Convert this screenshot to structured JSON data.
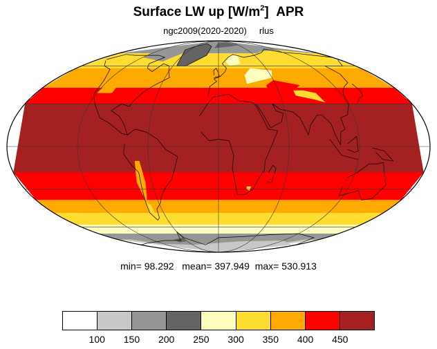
{
  "title": {
    "main": "Surface LW up [W/m",
    "sup": "2",
    "close": "]",
    "month": "APR"
  },
  "subtitle": {
    "left": "ngc2009(2020-2020)",
    "right": "rlus"
  },
  "stats": {
    "min_label": "min=",
    "min": "98.292",
    "mean_label": "mean=",
    "mean": "397.949",
    "max_label": "max=",
    "max": "530.913"
  },
  "colorbar": {
    "colors": [
      "#ffffff",
      "#c8c8c8",
      "#969696",
      "#646464",
      "#ffffc0",
      "#ffdc30",
      "#ffaa00",
      "#ff0000",
      "#a52020"
    ],
    "labels": [
      "100",
      "150",
      "200",
      "250",
      "300",
      "350",
      "400",
      "450"
    ]
  },
  "map": {
    "projection": "mollweide",
    "ocean_bands": [
      {
        "lat_from": 90,
        "lat_to": 72,
        "color": "#969696"
      },
      {
        "lat_from": 72,
        "lat_to": 58,
        "color": "#ffdc30"
      },
      {
        "lat_from": 58,
        "lat_to": 42,
        "color": "#ffaa00"
      },
      {
        "lat_from": 42,
        "lat_to": 30,
        "color": "#ff0000"
      },
      {
        "lat_from": 30,
        "lat_to": -18,
        "color": "#a52020"
      },
      {
        "lat_from": -18,
        "lat_to": -38,
        "color": "#ff0000"
      },
      {
        "lat_from": -38,
        "lat_to": -48,
        "color": "#ffaa00"
      },
      {
        "lat_from": -48,
        "lat_to": -58,
        "color": "#ffdc30"
      },
      {
        "lat_from": -58,
        "lat_to": -66,
        "color": "#ffffc0"
      },
      {
        "lat_from": -66,
        "lat_to": -72,
        "color": "#969696"
      },
      {
        "lat_from": -72,
        "lat_to": -90,
        "color": "#c8c8c8"
      }
    ],
    "grid_lon_step": 60,
    "grid_lat_step": 30,
    "outline_color": "#000000"
  }
}
